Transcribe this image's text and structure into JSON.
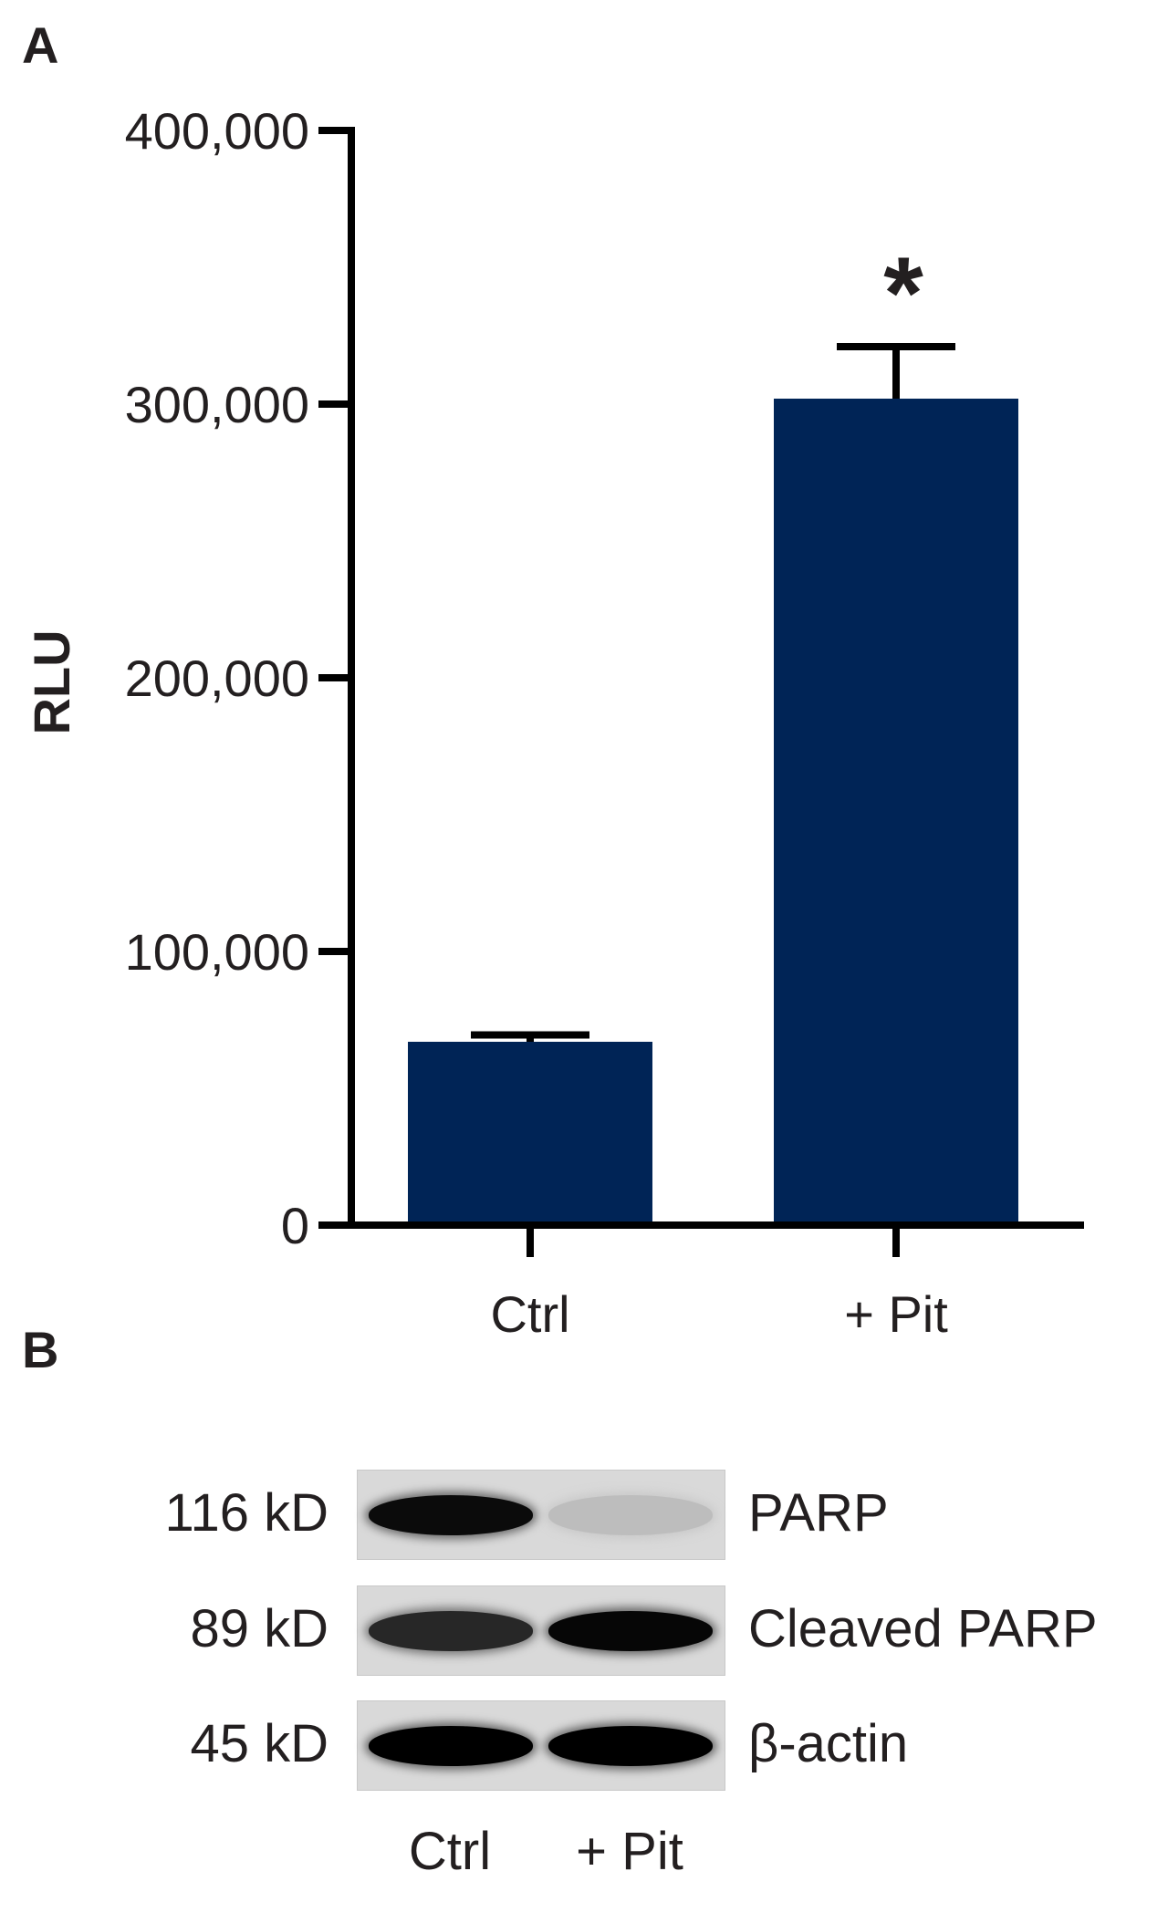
{
  "panels": {
    "a_label": "A",
    "b_label": "B"
  },
  "chart_data": {
    "type": "bar",
    "categories": [
      "Ctrl",
      "+ Pit"
    ],
    "values": [
      67000,
      302000
    ],
    "error": [
      2500,
      19000
    ],
    "significance": [
      "",
      "*"
    ],
    "xlabel": "",
    "ylabel": "RLU",
    "ylim": [
      0,
      400000
    ],
    "yticks": [
      0,
      100000,
      200000,
      300000,
      400000
    ],
    "ytick_labels": [
      "0",
      "100,000",
      "200,000",
      "300,000",
      "400,000"
    ],
    "bar_color": "#002456",
    "axis_color": "#000000",
    "grid": false
  },
  "blot": {
    "rows": [
      {
        "mw": "116 kD",
        "protein": "PARP",
        "intensity": [
          0.95,
          0.12
        ]
      },
      {
        "mw": "89 kD",
        "protein": "Cleaved PARP",
        "intensity": [
          0.82,
          0.97
        ]
      },
      {
        "mw": "45 kD",
        "protein": "β-actin",
        "intensity": [
          1.0,
          1.0
        ]
      }
    ],
    "lanes": [
      "Ctrl",
      "+ Pit"
    ]
  }
}
